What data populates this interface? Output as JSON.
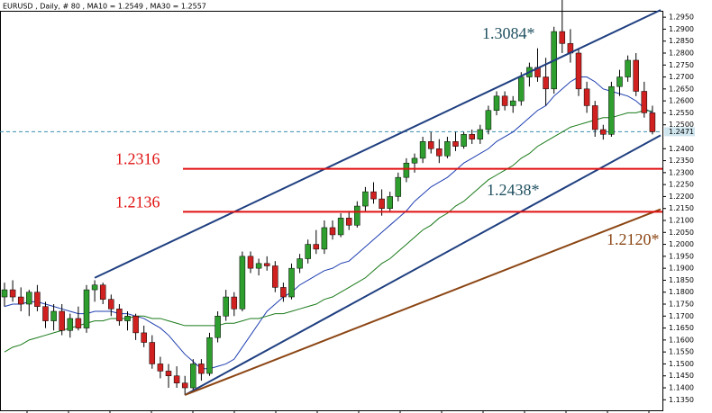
{
  "chart_data": {
    "type": "candlestick",
    "title": "EURUSD , Daily, # 80 , MA10 = 1.2549 , MA30 = 1.2557",
    "up_color": "#2e9e2e",
    "down_color": "#d02020",
    "open": [
      1.178,
      1.181,
      1.178,
      1.175,
      1.18,
      1.174,
      1.168,
      1.172,
      1.164,
      1.169,
      1.165,
      1.181,
      1.183,
      1.177,
      1.173,
      1.168,
      1.17,
      1.163,
      1.159,
      1.15,
      1.147,
      1.145,
      1.142,
      1.14,
      1.15,
      1.146,
      1.161,
      1.17,
      1.178,
      1.173,
      1.195,
      1.19,
      1.192,
      1.191,
      1.182,
      1.178,
      1.19,
      1.194,
      1.2,
      1.198,
      1.207,
      1.204,
      1.211,
      1.208,
      1.216,
      1.222,
      1.219,
      1.215,
      1.22,
      1.228,
      1.234,
      1.236,
      1.243,
      1.24,
      1.237,
      1.243,
      1.241,
      1.246,
      1.244,
      1.248,
      1.256,
      1.262,
      1.258,
      1.26,
      1.27,
      1.274,
      1.27,
      1.265,
      1.289,
      1.284,
      1.28,
      1.265,
      1.258,
      1.248,
      1.246,
      1.266,
      1.27,
      1.277,
      1.264,
      1.255
    ],
    "high": [
      1.184,
      1.185,
      1.182,
      1.181,
      1.183,
      1.176,
      1.175,
      1.175,
      1.171,
      1.174,
      1.183,
      1.185,
      1.184,
      1.179,
      1.175,
      1.172,
      1.171,
      1.166,
      1.162,
      1.153,
      1.15,
      1.149,
      1.145,
      1.152,
      1.152,
      1.163,
      1.172,
      1.181,
      1.18,
      1.197,
      1.197,
      1.194,
      1.195,
      1.193,
      1.184,
      1.192,
      1.196,
      1.202,
      1.206,
      1.21,
      1.21,
      1.213,
      1.214,
      1.218,
      1.224,
      1.226,
      1.223,
      1.222,
      1.23,
      1.236,
      1.238,
      1.245,
      1.247,
      1.244,
      1.245,
      1.247,
      1.247,
      1.248,
      1.25,
      1.258,
      1.264,
      1.264,
      1.262,
      1.272,
      1.276,
      1.282,
      1.278,
      1.291,
      1.3084,
      1.29,
      1.282,
      1.268,
      1.26,
      1.25,
      1.268,
      1.273,
      1.279,
      1.28,
      1.268,
      1.258
    ],
    "low": [
      1.174,
      1.176,
      1.172,
      1.17,
      1.172,
      1.165,
      1.164,
      1.162,
      1.161,
      1.164,
      1.163,
      1.176,
      1.175,
      1.17,
      1.166,
      1.164,
      1.16,
      1.157,
      1.148,
      1.144,
      1.14,
      1.14,
      1.137,
      1.139,
      1.143,
      1.145,
      1.159,
      1.168,
      1.17,
      1.172,
      1.188,
      1.187,
      1.189,
      1.18,
      1.176,
      1.177,
      1.188,
      1.192,
      1.196,
      1.196,
      1.202,
      1.203,
      1.206,
      1.207,
      1.214,
      1.217,
      1.212,
      1.214,
      1.218,
      1.226,
      1.23,
      1.234,
      1.238,
      1.234,
      1.236,
      1.239,
      1.24,
      1.242,
      1.242,
      1.246,
      1.254,
      1.256,
      1.255,
      1.258,
      1.266,
      1.268,
      1.258,
      1.263,
      1.28,
      1.276,
      1.262,
      1.255,
      1.245,
      1.2438,
      1.245,
      1.262,
      1.268,
      1.262,
      1.253,
      1.246
    ],
    "close": [
      1.181,
      1.178,
      1.175,
      1.18,
      1.174,
      1.168,
      1.172,
      1.164,
      1.169,
      1.165,
      1.181,
      1.183,
      1.177,
      1.173,
      1.168,
      1.17,
      1.163,
      1.159,
      1.15,
      1.147,
      1.145,
      1.142,
      1.14,
      1.15,
      1.146,
      1.161,
      1.17,
      1.178,
      1.173,
      1.195,
      1.19,
      1.192,
      1.191,
      1.182,
      1.178,
      1.19,
      1.194,
      1.2,
      1.198,
      1.207,
      1.204,
      1.211,
      1.208,
      1.216,
      1.222,
      1.219,
      1.215,
      1.22,
      1.228,
      1.234,
      1.236,
      1.243,
      1.24,
      1.237,
      1.243,
      1.241,
      1.246,
      1.244,
      1.248,
      1.256,
      1.262,
      1.258,
      1.26,
      1.27,
      1.274,
      1.27,
      1.265,
      1.289,
      1.284,
      1.28,
      1.265,
      1.258,
      1.248,
      1.246,
      1.266,
      1.27,
      1.277,
      1.264,
      1.255,
      1.2471
    ],
    "ma": [
      {
        "name": "MA10",
        "color": "#1f3fb0",
        "values": [
          1.174,
          1.175,
          1.175,
          1.176,
          1.176,
          1.175,
          1.174,
          1.173,
          1.172,
          1.171,
          1.171,
          1.172,
          1.172,
          1.172,
          1.171,
          1.171,
          1.17,
          1.169,
          1.167,
          1.165,
          1.162,
          1.158,
          1.154,
          1.151,
          1.148,
          1.148,
          1.149,
          1.15,
          1.152,
          1.157,
          1.162,
          1.167,
          1.172,
          1.175,
          1.178,
          1.18,
          1.183,
          1.185,
          1.187,
          1.189,
          1.19,
          1.192,
          1.193,
          1.196,
          1.199,
          1.202,
          1.205,
          1.208,
          1.211,
          1.214,
          1.218,
          1.221,
          1.224,
          1.226,
          1.228,
          1.231,
          1.234,
          1.236,
          1.238,
          1.24,
          1.243,
          1.245,
          1.247,
          1.25,
          1.253,
          1.256,
          1.258,
          1.262,
          1.265,
          1.268,
          1.27,
          1.27,
          1.268,
          1.265,
          1.264,
          1.263,
          1.262,
          1.26,
          1.257,
          1.2549
        ]
      },
      {
        "name": "MA30",
        "color": "#1a7a1a",
        "values": [
          1.155,
          1.157,
          1.158,
          1.16,
          1.161,
          1.162,
          1.163,
          1.164,
          1.165,
          1.166,
          1.167,
          1.168,
          1.168,
          1.169,
          1.169,
          1.169,
          1.17,
          1.17,
          1.169,
          1.169,
          1.168,
          1.167,
          1.166,
          1.166,
          1.166,
          1.166,
          1.166,
          1.167,
          1.167,
          1.168,
          1.169,
          1.169,
          1.17,
          1.171,
          1.171,
          1.172,
          1.173,
          1.174,
          1.175,
          1.177,
          1.178,
          1.18,
          1.182,
          1.184,
          1.186,
          1.189,
          1.192,
          1.194,
          1.197,
          1.2,
          1.203,
          1.206,
          1.208,
          1.211,
          1.213,
          1.216,
          1.218,
          1.221,
          1.224,
          1.227,
          1.229,
          1.231,
          1.233,
          1.236,
          1.238,
          1.241,
          1.243,
          1.245,
          1.247,
          1.249,
          1.25,
          1.251,
          1.252,
          1.253,
          1.253,
          1.254,
          1.255,
          1.255,
          1.256,
          1.2557
        ]
      }
    ],
    "levels": [
      {
        "value": 1.2316,
        "color": "#e01010"
      },
      {
        "value": 1.2136,
        "color": "#e01010"
      }
    ],
    "trendlines": [
      {
        "from_index": 11,
        "from_value": 1.186,
        "to_index": 80,
        "to_value": 1.298,
        "color": "#1f3f80"
      },
      {
        "from_index": 22,
        "from_value": 1.137,
        "to_index": 80,
        "to_value": 1.2456,
        "color": "#1f3f80"
      },
      {
        "from_index": 22,
        "from_value": 1.137,
        "to_index": 80,
        "to_value": 1.2147,
        "color": "#8b4513"
      }
    ],
    "annotations": [
      {
        "text": "1.3084*",
        "color": "#1f5060"
      },
      {
        "text": "1.2438*",
        "color": "#1f5060"
      },
      {
        "text": "1.2120*",
        "color": "#8b4513"
      }
    ],
    "current_price": 1.2471,
    "ylim": [
      1.1306,
      1.2973
    ],
    "yticks": [
      {
        "value": 1.295,
        "label": "1.2950"
      },
      {
        "value": 1.29,
        "label": "1.2900"
      },
      {
        "value": 1.285,
        "label": "1.2850"
      },
      {
        "value": 1.28,
        "label": "1.2800"
      },
      {
        "value": 1.275,
        "label": "1.2750"
      },
      {
        "value": 1.27,
        "label": "1.2700"
      },
      {
        "value": 1.265,
        "label": "1.2650"
      },
      {
        "value": 1.26,
        "label": "1.2600"
      },
      {
        "value": 1.255,
        "label": "1.2550"
      },
      {
        "value": 1.25,
        "label": "1.2500"
      },
      {
        "value": 1.24,
        "label": "1.2400"
      },
      {
        "value": 1.235,
        "label": "1.2350"
      },
      {
        "value": 1.23,
        "label": "1.2300"
      },
      {
        "value": 1.225,
        "label": "1.2250"
      },
      {
        "value": 1.22,
        "label": "1.2200"
      },
      {
        "value": 1.215,
        "label": "1.2150"
      },
      {
        "value": 1.21,
        "label": "1.2100"
      },
      {
        "value": 1.205,
        "label": "1.2050"
      },
      {
        "value": 1.2,
        "label": "1.2000"
      },
      {
        "value": 1.195,
        "label": "1.1950"
      },
      {
        "value": 1.19,
        "label": "1.1900"
      },
      {
        "value": 1.185,
        "label": "1.1850"
      },
      {
        "value": 1.18,
        "label": "1.1800"
      },
      {
        "value": 1.175,
        "label": "1.1750"
      },
      {
        "value": 1.17,
        "label": "1.1700"
      },
      {
        "value": 1.165,
        "label": "1.1650"
      },
      {
        "value": 1.16,
        "label": "1.1600"
      },
      {
        "value": 1.155,
        "label": "1.1550"
      },
      {
        "value": 1.15,
        "label": "1.1500"
      },
      {
        "value": 1.145,
        "label": "1.1450"
      },
      {
        "value": 1.14,
        "label": "1.1400"
      },
      {
        "value": 1.135,
        "label": "1.1350"
      }
    ]
  }
}
